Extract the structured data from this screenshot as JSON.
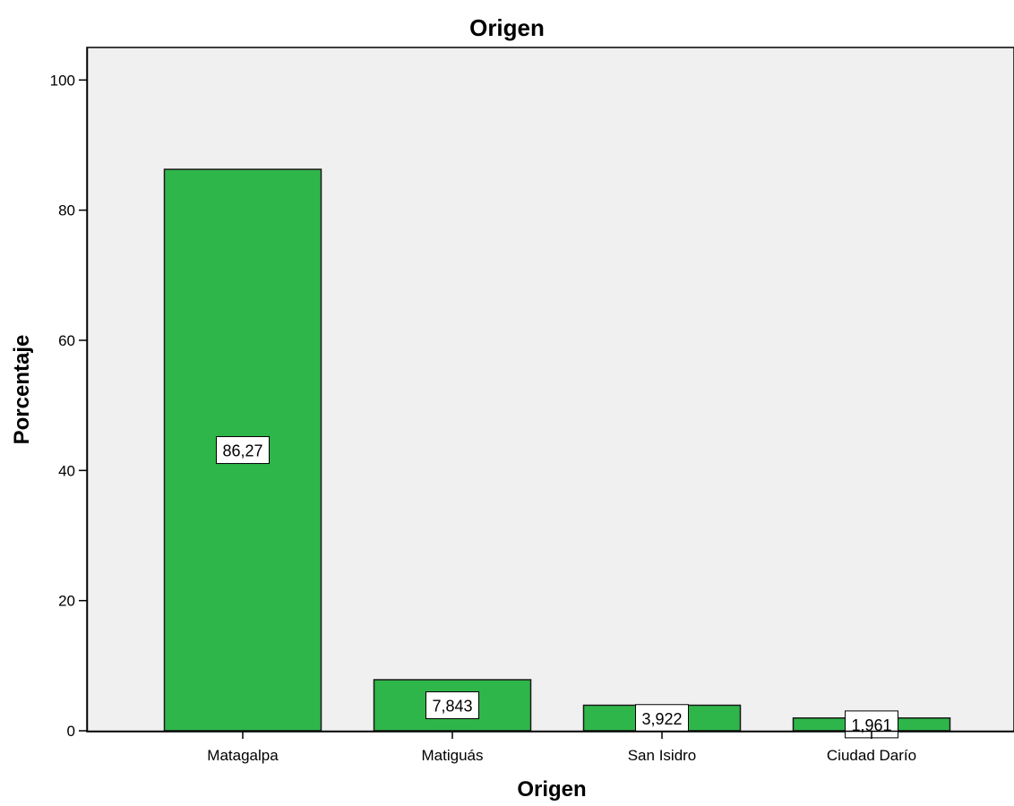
{
  "chart_data": {
    "type": "bar",
    "title": "Origen",
    "xlabel": "Origen",
    "ylabel": "Porcentaje",
    "categories": [
      "Matagalpa",
      "Matiguás",
      "San Isidro",
      "Ciudad Darío"
    ],
    "values": [
      86.27,
      7.843,
      3.922,
      1.961
    ],
    "data_labels": [
      "86,27",
      "7,843",
      "3,922",
      "1,961"
    ],
    "yticks": [
      0,
      20,
      40,
      60,
      80,
      100
    ],
    "ytick_labels": [
      "0",
      "20",
      "40",
      "60",
      "80",
      "100"
    ],
    "ylim": [
      0,
      105
    ],
    "grid": false,
    "legend": "none",
    "colors": {
      "bar_fill": "#2fb64a",
      "bar_stroke": "#1a1a1a",
      "plot_background": "#f0f0f0",
      "label_box": "#ffffff"
    }
  }
}
